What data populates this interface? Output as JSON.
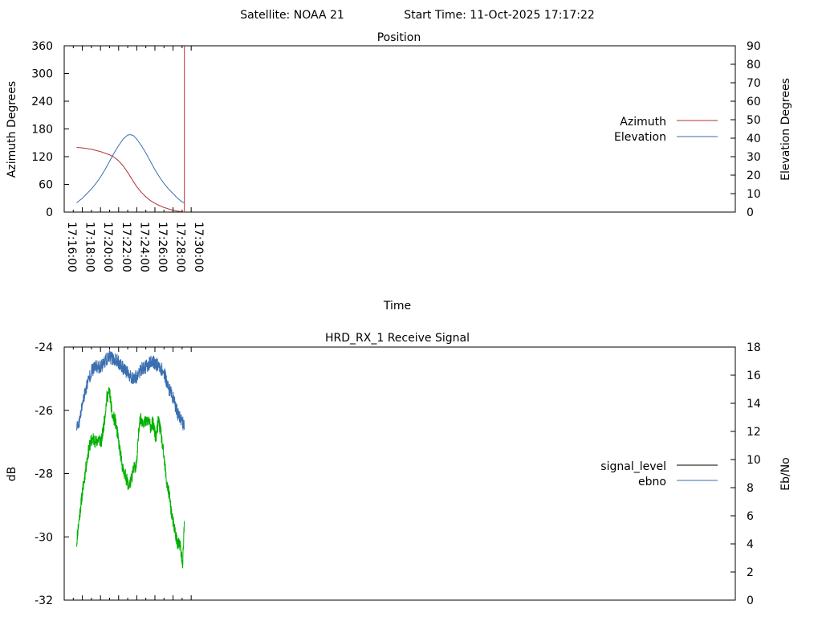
{
  "header": {
    "satellite_label": "Satellite: NOAA 21",
    "start_time_label": "Start Time: 11-Oct-2025 17:17:22"
  },
  "colors": {
    "azimuth": "#b03030",
    "elevation": "#3a6fb0",
    "signal_level": "#00b000",
    "signal_legend": "#000000",
    "ebno": "#3a6fb0",
    "axis": "#000000",
    "background": "#ffffff"
  },
  "chart_data": [
    {
      "type": "line",
      "title": "Position",
      "xlabel": "Time",
      "ylabel": "Azimuth Degrees",
      "y2label": "Elevation Degrees",
      "xlim_min": [
        976,
        1050
      ],
      "ylim": [
        0,
        360
      ],
      "y2lim": [
        0,
        90
      ],
      "x_ticks_min": [
        976,
        978,
        980,
        982,
        984,
        986,
        988,
        990
      ],
      "x_tick_labels": [
        "17:16:00",
        "17:18:00",
        "17:20:00",
        "17:22:00",
        "17:24:00",
        "17:26:00",
        "17:28:00",
        "17:30:00"
      ],
      "y_ticks": [
        0,
        60,
        120,
        180,
        240,
        300,
        360
      ],
      "y2_ticks": [
        0,
        10,
        20,
        30,
        40,
        50,
        60,
        70,
        80,
        90
      ],
      "legend": [
        "Azimuth",
        "Elevation"
      ],
      "series": [
        {
          "name": "Azimuth",
          "axis": "y",
          "x_min": [
            977.37,
            978.0,
            979.0,
            980.0,
            981.0,
            981.5,
            982.0,
            982.5,
            983.0,
            983.5,
            984.0,
            984.5,
            985.0,
            985.5,
            986.0,
            986.5,
            987.0,
            987.5,
            988.0,
            988.5,
            988.9,
            989.2,
            989.25,
            989.25
          ],
          "values": [
            140,
            139,
            136,
            131,
            124,
            119,
            111,
            100,
            86,
            70,
            55,
            43,
            33,
            25,
            19,
            14,
            10,
            7,
            4,
            2,
            1,
            0.5,
            0.5,
            360
          ]
        },
        {
          "name": "Elevation",
          "axis": "y2",
          "x_min": [
            977.37,
            978.0,
            978.5,
            979.0,
            979.5,
            980.0,
            980.5,
            981.0,
            981.5,
            982.0,
            982.5,
            983.0,
            983.3,
            983.6,
            984.0,
            984.5,
            985.0,
            985.5,
            986.0,
            986.5,
            987.0,
            987.5,
            988.0,
            988.5,
            989.0,
            989.25
          ],
          "values": [
            5,
            7.5,
            10,
            12.5,
            15.5,
            19,
            23,
            27.5,
            32,
            36,
            39.5,
            41.7,
            41.9,
            41.5,
            39.5,
            36,
            32,
            27.5,
            23,
            19,
            15.5,
            12.5,
            10,
            7.5,
            5.5,
            5
          ]
        }
      ]
    },
    {
      "type": "line",
      "title": "HRD_RX_1 Receive Signal",
      "xlabel": "",
      "ylabel": "dB",
      "y2label": "Eb/No",
      "xlim_min": [
        976,
        1050
      ],
      "ylim": [
        -32,
        -24
      ],
      "y2lim": [
        0,
        18
      ],
      "x_ticks_min": [
        976,
        978,
        980,
        982,
        984,
        986,
        988,
        990
      ],
      "y_ticks": [
        -32,
        -30,
        -28,
        -26,
        -24
      ],
      "y2_ticks": [
        0,
        2,
        4,
        6,
        8,
        10,
        12,
        14,
        16,
        18
      ],
      "legend": [
        "signal_level",
        "ebno"
      ],
      "series": [
        {
          "name": "signal_level",
          "axis": "y",
          "x_min": [
            977.37,
            977.5,
            977.7,
            978.0,
            978.3,
            978.6,
            978.9,
            979.2,
            979.5,
            979.8,
            980.1,
            980.4,
            980.7,
            981.0,
            981.3,
            981.6,
            981.9,
            982.2,
            982.5,
            982.8,
            983.1,
            983.4,
            983.7,
            984.0,
            984.3,
            984.6,
            984.9,
            985.2,
            985.5,
            985.8,
            986.1,
            986.4,
            986.7,
            987.0,
            987.3,
            987.6,
            987.9,
            988.2,
            988.5,
            988.8,
            989.05,
            989.25
          ],
          "values": [
            -30.2,
            -29.8,
            -29.3,
            -28.6,
            -28.0,
            -27.4,
            -27.0,
            -26.9,
            -27.0,
            -26.9,
            -27.0,
            -26.4,
            -25.6,
            -25.4,
            -26.2,
            -26.3,
            -26.8,
            -27.4,
            -27.9,
            -28.1,
            -28.4,
            -28.2,
            -27.8,
            -27.7,
            -26.3,
            -26.3,
            -26.4,
            -26.3,
            -26.5,
            -26.4,
            -26.9,
            -26.3,
            -26.8,
            -27.5,
            -28.3,
            -28.7,
            -29.4,
            -29.8,
            -30.2,
            -30.3,
            -30.9,
            -29.5
          ]
        },
        {
          "name": "ebno",
          "axis": "y2",
          "x_min": [
            977.37,
            977.7,
            978.0,
            978.5,
            979.0,
            979.5,
            980.0,
            980.5,
            981.0,
            981.5,
            982.0,
            982.5,
            983.0,
            983.5,
            984.0,
            984.5,
            985.0,
            985.5,
            986.0,
            986.5,
            987.0,
            987.5,
            988.0,
            988.5,
            989.0,
            989.25
          ],
          "values": [
            12.2,
            12.7,
            14.0,
            15.3,
            16.3,
            16.6,
            16.6,
            17.0,
            17.3,
            17.1,
            16.9,
            16.5,
            16.1,
            15.8,
            15.9,
            16.4,
            16.6,
            16.9,
            16.9,
            16.6,
            16.2,
            15.1,
            14.4,
            13.3,
            12.8,
            12.2
          ]
        }
      ]
    }
  ]
}
